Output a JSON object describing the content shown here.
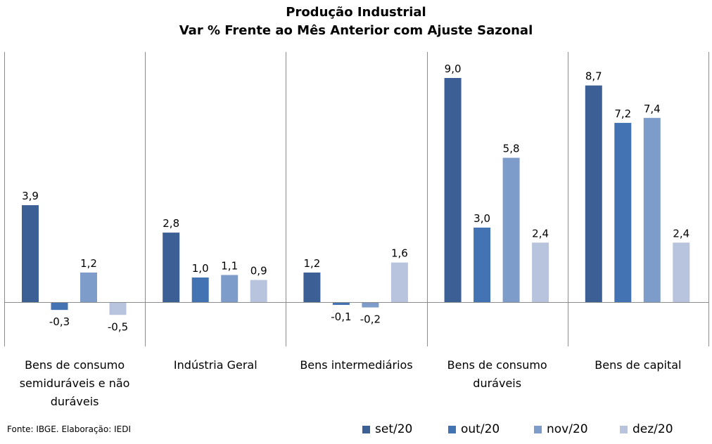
{
  "chart_data": {
    "type": "bar",
    "title": "Produção Industrial",
    "subtitle": "Var % Frente ao Mês Anterior com Ajuste Sazonal",
    "categories": [
      [
        "Bens de consumo",
        "semiduráveis e não",
        "duráveis"
      ],
      [
        "Indústria Geral"
      ],
      [
        "Bens intermediários"
      ],
      [
        "Bens de consumo",
        "duráveis"
      ],
      [
        "Bens de capital"
      ]
    ],
    "series": [
      {
        "name": "set/20",
        "color": "#3c5f95",
        "values": [
          3.9,
          2.8,
          1.2,
          9.0,
          8.7
        ],
        "labels": [
          "3,9",
          "2,8",
          "1,2",
          "9,0",
          "8,7"
        ]
      },
      {
        "name": "out/20",
        "color": "#4473b3",
        "values": [
          -0.3,
          1.0,
          -0.1,
          3.0,
          7.2
        ],
        "labels": [
          "-0,3",
          "1,0",
          "-0,1",
          "3,0",
          "7,2"
        ]
      },
      {
        "name": "nov/20",
        "color": "#7e9cc9",
        "values": [
          1.2,
          1.1,
          -0.2,
          5.8,
          7.4
        ],
        "labels": [
          "1,2",
          "1,1",
          "-0,2",
          "5,8",
          "7,4"
        ]
      },
      {
        "name": "dez/20",
        "color": "#b8c4de",
        "values": [
          -0.5,
          0.9,
          1.6,
          2.4,
          2.4
        ],
        "labels": [
          "-0,5",
          "0,9",
          "1,6",
          "2,4",
          "2,4"
        ]
      }
    ],
    "grid": false,
    "legend_position": "bottom-right"
  },
  "source": "Fonte: IBGE. Elaboração: IEDI"
}
